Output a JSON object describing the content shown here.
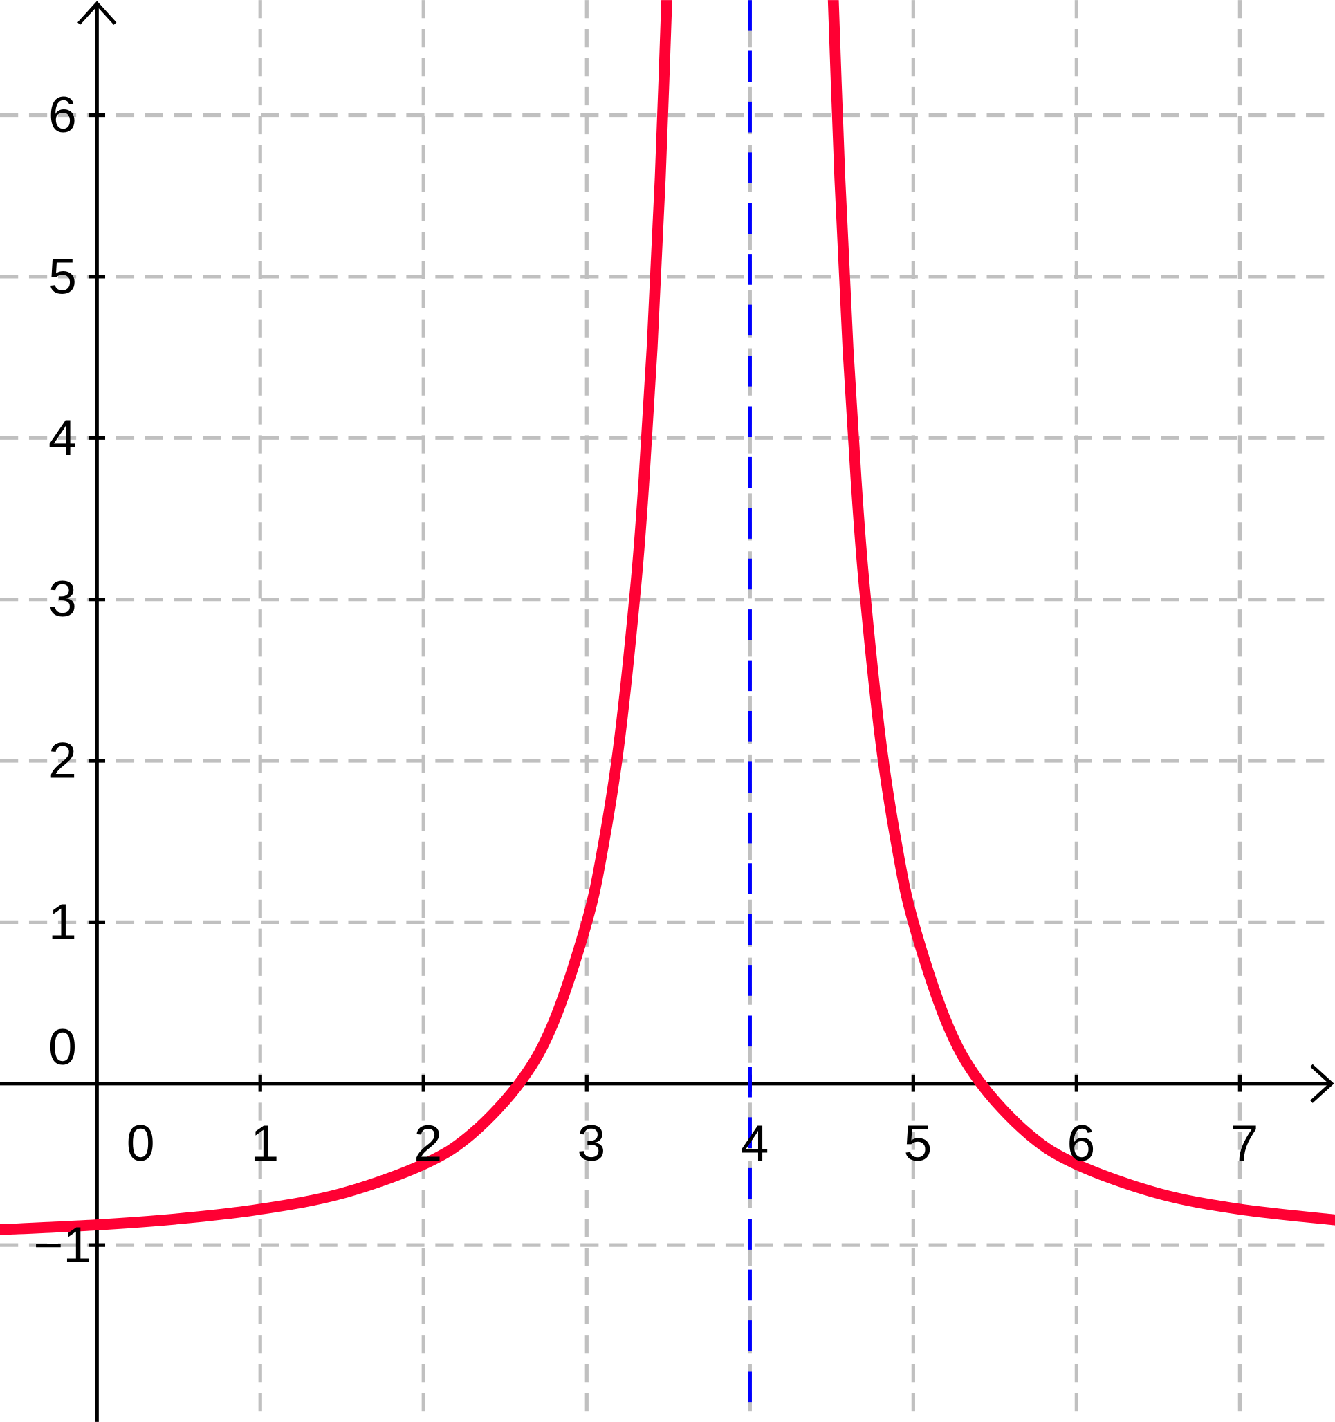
{
  "chart_data": {
    "type": "line",
    "x": [
      -0.6,
      0,
      0.5,
      1,
      1.5,
      2,
      2.3,
      2.6,
      2.8,
      3,
      3.1,
      3.2,
      3.3,
      3.35,
      3.4,
      3.45,
      3.5,
      null,
      4.5,
      4.55,
      4.6,
      4.65,
      4.7,
      4.8,
      4.9,
      5,
      5.2,
      5.4,
      5.7,
      6,
      6.5,
      7,
      7.6
    ],
    "series": [
      {
        "color": "#ff0033",
        "values": [
          -0.905,
          -0.875,
          -0.837,
          -0.778,
          -0.68,
          -0.5,
          -0.308,
          0.02,
          0.389,
          1,
          1.469,
          2.125,
          3.082,
          3.734,
          4.556,
          5.612,
          7,
          null,
          7,
          5.612,
          4.556,
          3.734,
          3.082,
          2.125,
          1.469,
          1,
          0.389,
          0.02,
          -0.308,
          -0.5,
          -0.68,
          -0.778,
          -0.846
        ]
      }
    ],
    "asymptote": {
      "x": 4,
      "color": "#0000ff"
    },
    "xlim": [
      -0.594,
      7.583
    ],
    "ylim": [
      -2.096,
      6.713
    ],
    "xticks": [
      0,
      1,
      2,
      3,
      4,
      5,
      6,
      7
    ],
    "yticks": [
      {
        "value": -1,
        "label": "−1"
      },
      0,
      1,
      2,
      3,
      4,
      5,
      6
    ],
    "grid": true
  }
}
